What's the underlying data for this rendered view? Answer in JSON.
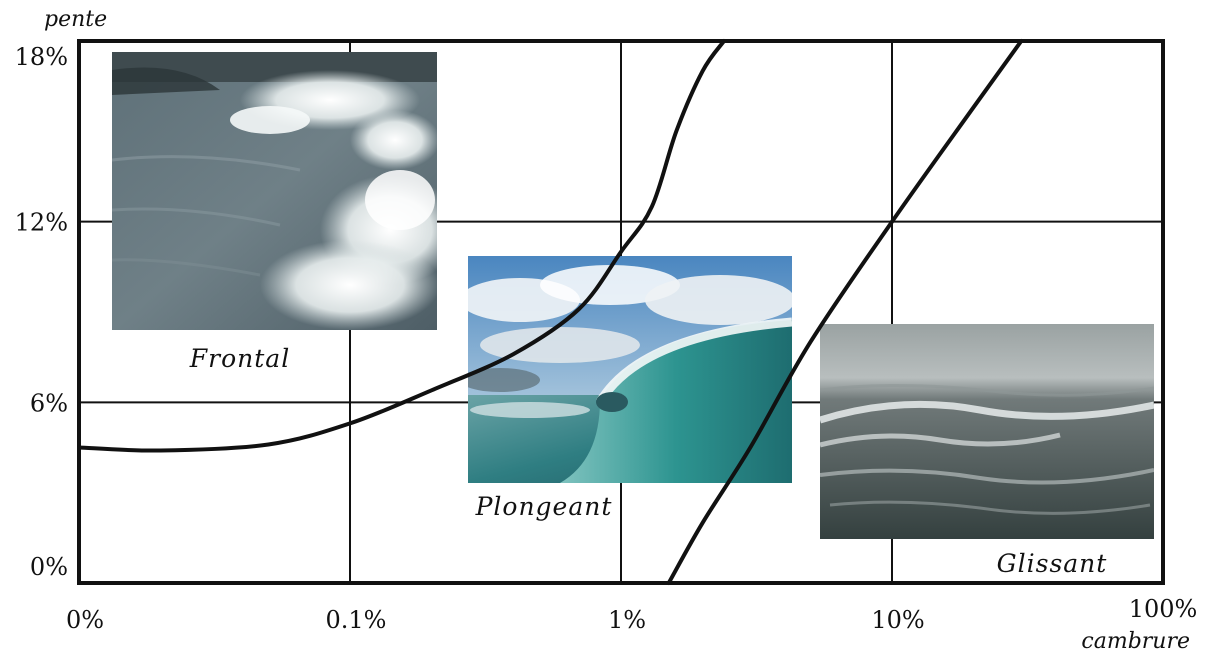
{
  "chart_data": {
    "type": "line",
    "xlabel": "cambrure",
    "ylabel": "pente",
    "x_scale": "log",
    "x_ticks": [
      "0%",
      "0.1%",
      "1%",
      "10%",
      "100%"
    ],
    "y_ticks": [
      "0%",
      "6%",
      "12%",
      "18%"
    ],
    "ylim": [
      0,
      18
    ],
    "grid": true,
    "series": [
      {
        "x": [
          "0%",
          "0.02%",
          "0.05%",
          "0.1%",
          "0.2%",
          "0.4%",
          "0.7%",
          "1%",
          "1.3%",
          "1.6%",
          "2%",
          "2.4%"
        ],
        "y": [
          4.5,
          4.4,
          4.6,
          5.3,
          6.4,
          7.6,
          9.1,
          11.0,
          12.5,
          15.0,
          17.0,
          18.0
        ]
      },
      {
        "x": [
          "1.5%",
          "2%",
          "3%",
          "5%",
          "10%",
          "20%",
          "30%"
        ],
        "y": [
          0,
          2.0,
          4.5,
          8.0,
          12.0,
          15.8,
          18.0
        ]
      }
    ],
    "regions": [
      {
        "label": "Frontal",
        "image": "spilling-breaking-wave-photo"
      },
      {
        "label": "Plongeant",
        "image": "plunging-barrel-wave-photo"
      },
      {
        "label": "Glissant",
        "image": "surging-sea-waves-photo"
      }
    ]
  }
}
